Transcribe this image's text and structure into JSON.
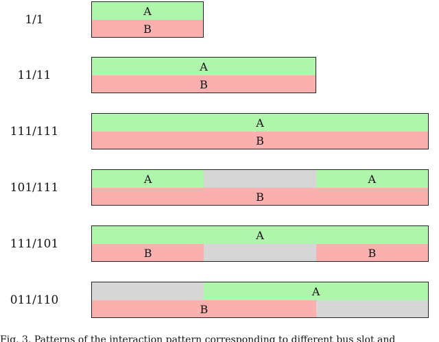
{
  "colors": {
    "A": "#b0f5ac",
    "B": "#fbb0b0",
    "gap": "#d6d6d6"
  },
  "rows": [
    {
      "label": "1/1",
      "units": 1,
      "top": [
        {
          "kind": "A",
          "label": "A",
          "span": 1
        }
      ],
      "bottom": [
        {
          "kind": "B",
          "label": "B",
          "span": 1
        }
      ]
    },
    {
      "label": "11/11",
      "units": 2,
      "top": [
        {
          "kind": "A",
          "label": "A",
          "span": 2
        }
      ],
      "bottom": [
        {
          "kind": "B",
          "label": "B",
          "span": 2
        }
      ]
    },
    {
      "label": "111/111",
      "units": 3,
      "top": [
        {
          "kind": "A",
          "label": "A",
          "span": 3
        }
      ],
      "bottom": [
        {
          "kind": "B",
          "label": "B",
          "span": 3
        }
      ]
    },
    {
      "label": "101/111",
      "units": 3,
      "top": [
        {
          "kind": "A",
          "label": "A",
          "span": 1
        },
        {
          "kind": "gap",
          "label": "",
          "span": 1
        },
        {
          "kind": "A",
          "label": "A",
          "span": 1
        }
      ],
      "bottom": [
        {
          "kind": "B",
          "label": "B",
          "span": 3
        }
      ]
    },
    {
      "label": "111/101",
      "units": 3,
      "top": [
        {
          "kind": "A",
          "label": "A",
          "span": 3
        }
      ],
      "bottom": [
        {
          "kind": "B",
          "label": "B",
          "span": 1
        },
        {
          "kind": "gap",
          "label": "",
          "span": 1
        },
        {
          "kind": "B",
          "label": "B",
          "span": 1
        }
      ]
    },
    {
      "label": "011/110",
      "units": 3,
      "top": [
        {
          "kind": "gap",
          "label": "",
          "span": 1
        },
        {
          "kind": "A",
          "label": "A",
          "span": 2
        }
      ],
      "bottom": [
        {
          "kind": "B",
          "label": "B",
          "span": 2
        },
        {
          "kind": "gap",
          "label": "",
          "span": 1
        }
      ]
    }
  ],
  "caption": "Fig. 3.   Patterns of the interaction pattern corresponding to different bus slot and"
}
